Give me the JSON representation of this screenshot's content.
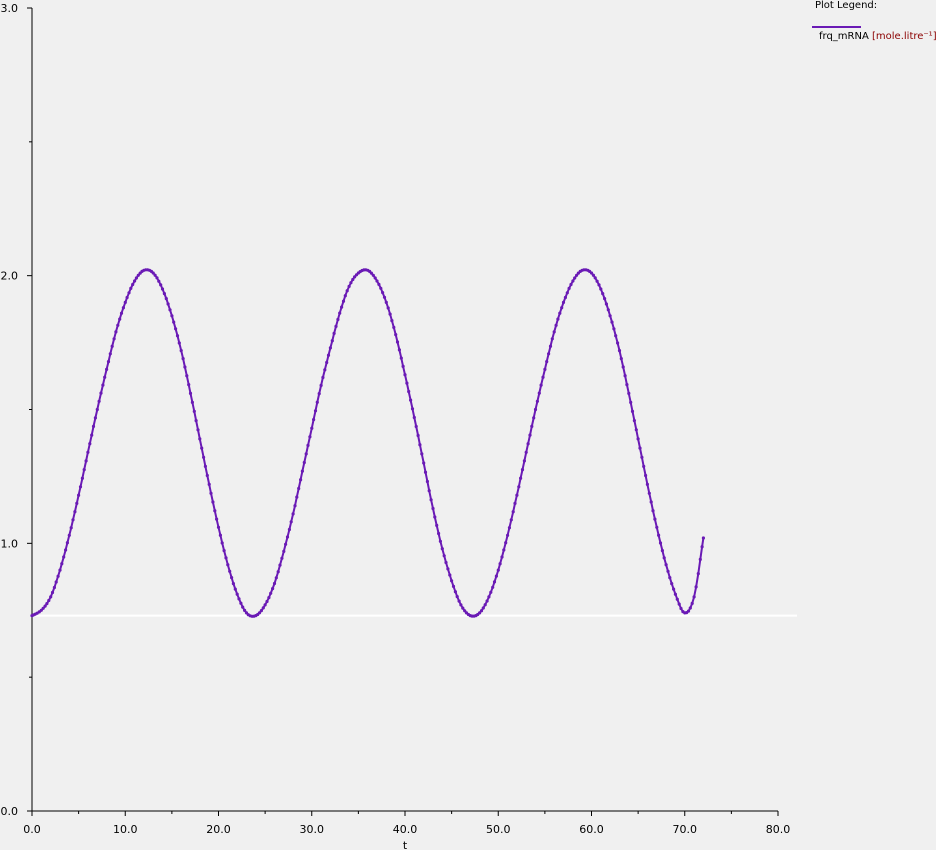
{
  "legend": {
    "title": "Plot Legend:",
    "entries": [
      {
        "name": "frq_mRNA",
        "unit": "[mole.litre⁻¹]",
        "color": "#6a1ab5"
      }
    ]
  },
  "chart_data": {
    "type": "line",
    "xlabel": "t",
    "ylabel": "",
    "xlim": [
      0,
      80
    ],
    "ylim": [
      0,
      3
    ],
    "x_ticks": [
      "0.0",
      "10.0",
      "20.0",
      "30.0",
      "40.0",
      "50.0",
      "60.0",
      "70.0",
      "80.0"
    ],
    "y_ticks": [
      "0.0",
      "1.0",
      "2.0",
      "3.0"
    ],
    "reference_line_y": 0.73,
    "series": [
      {
        "name": "frq_mRNA",
        "color": "#6a1ab5",
        "x": [
          0,
          1,
          2,
          3,
          4,
          5,
          6,
          7,
          8,
          9,
          10,
          11,
          12,
          13,
          14,
          15,
          16,
          17,
          18,
          19,
          20,
          21,
          22,
          23,
          24,
          25,
          26,
          27,
          28,
          29,
          30,
          31,
          32,
          33,
          34,
          35,
          36,
          37,
          38,
          39,
          40,
          41,
          42,
          43,
          44,
          45,
          46,
          47,
          48,
          49,
          50,
          51,
          52,
          53,
          54,
          55,
          56,
          57,
          58,
          59,
          60,
          61,
          62,
          63,
          64,
          65,
          66,
          67,
          68,
          69,
          70,
          71,
          72
        ],
        "y": [
          0.73,
          0.75,
          0.8,
          0.9,
          1.03,
          1.18,
          1.34,
          1.5,
          1.65,
          1.79,
          1.9,
          1.98,
          2.02,
          2.01,
          1.95,
          1.85,
          1.72,
          1.56,
          1.39,
          1.22,
          1.06,
          0.92,
          0.81,
          0.74,
          0.73,
          0.77,
          0.85,
          0.97,
          1.11,
          1.27,
          1.43,
          1.59,
          1.73,
          1.86,
          1.96,
          2.01,
          2.02,
          1.98,
          1.9,
          1.78,
          1.63,
          1.47,
          1.3,
          1.13,
          0.98,
          0.86,
          0.77,
          0.73,
          0.74,
          0.8,
          0.9,
          1.03,
          1.18,
          1.34,
          1.5,
          1.65,
          1.79,
          1.9,
          1.98,
          2.02,
          2.01,
          1.95,
          1.85,
          1.72,
          1.56,
          1.39,
          1.22,
          1.06,
          0.92,
          0.81,
          0.74,
          0.8,
          1.02
        ]
      }
    ]
  }
}
